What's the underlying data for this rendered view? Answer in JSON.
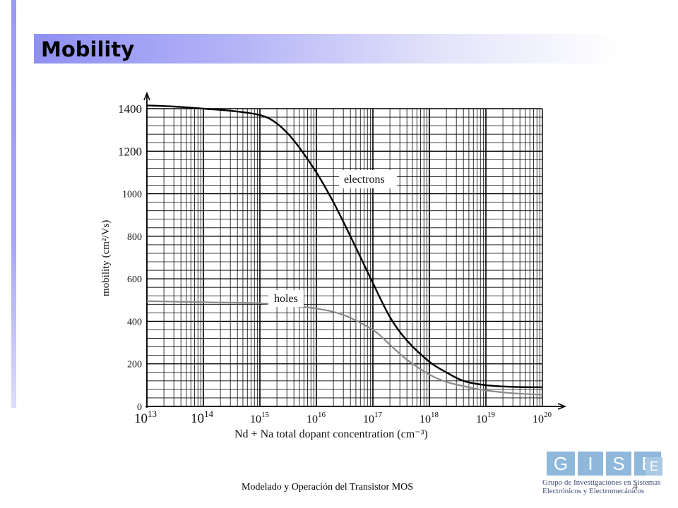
{
  "slide": {
    "title": "Mobility",
    "footer": "Modelado y Operación del Transistor MOS",
    "page_number": "4"
  },
  "logo": {
    "letters": [
      "G",
      "I",
      "S",
      "E"
    ],
    "sub_letter": "E",
    "line1": "Grupo de Investigaciones en Sistemas",
    "line2": "Electrónicos y Electromecánicos",
    "color": "#8fb8da"
  },
  "colors": {
    "title_band_start": "#8f8ff4",
    "electrons_curve": "#000000",
    "holes_curve": "#8a8a8a",
    "grid": "#000000"
  },
  "chart_data": {
    "type": "line",
    "xscale": "log",
    "xlim": [
      10000000000000.0,
      1e+20
    ],
    "ylim": [
      0,
      1400
    ],
    "grid": true,
    "ylabel": "mobility (cm²/Vs)",
    "xlabel": "Nd + Na total dopant concentration (cm⁻³)",
    "y_ticks": [
      0,
      200,
      400,
      600,
      800,
      1000,
      1200,
      1400
    ],
    "x_ticks": [
      "10^13",
      "10^14",
      "10^15",
      "10^16",
      "10^17",
      "10^18",
      "10^19",
      "10^20"
    ],
    "series": [
      {
        "name": "electrons",
        "x": [
          10000000000000.0,
          30000000000000.0,
          100000000000000.0,
          300000000000000.0,
          1000000000000000.0,
          2000000000000000.0,
          4000000000000000.0,
          1e+16,
          2e+16,
          4e+16,
          1e+17,
          2e+17,
          4e+17,
          1e+18,
          2e+18,
          4e+18,
          1e+19,
          3e+19,
          1e+20
        ],
        "y": [
          1415,
          1410,
          1400,
          1390,
          1370,
          1330,
          1250,
          1100,
          960,
          800,
          580,
          420,
          310,
          210,
          160,
          120,
          100,
          92,
          90
        ]
      },
      {
        "name": "holes",
        "x": [
          10000000000000.0,
          100000000000000.0,
          1000000000000000.0,
          3000000000000000.0,
          1e+16,
          3e+16,
          1e+17,
          2e+17,
          4e+17,
          1e+18,
          2e+18,
          5e+18,
          1e+19,
          3e+19,
          1e+20
        ],
        "y": [
          495,
          490,
          485,
          475,
          460,
          430,
          360,
          290,
          220,
          150,
          115,
          90,
          75,
          62,
          55
        ]
      }
    ]
  }
}
